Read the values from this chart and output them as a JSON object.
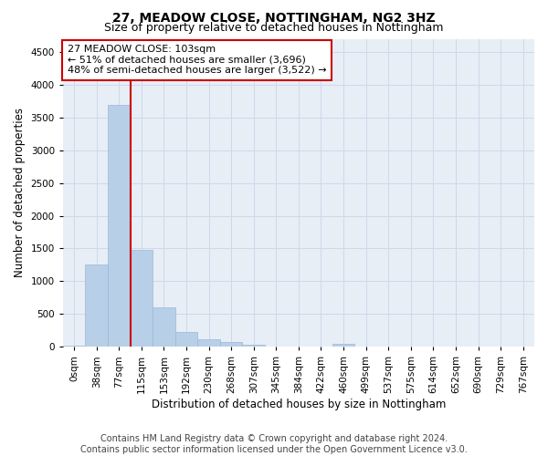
{
  "title": "27, MEADOW CLOSE, NOTTINGHAM, NG2 3HZ",
  "subtitle": "Size of property relative to detached houses in Nottingham",
  "xlabel": "Distribution of detached houses by size in Nottingham",
  "ylabel": "Number of detached properties",
  "footer_line1": "Contains HM Land Registry data © Crown copyright and database right 2024.",
  "footer_line2": "Contains public sector information licensed under the Open Government Licence v3.0.",
  "bin_labels": [
    "0sqm",
    "38sqm",
    "77sqm",
    "115sqm",
    "153sqm",
    "192sqm",
    "230sqm",
    "268sqm",
    "307sqm",
    "345sqm",
    "384sqm",
    "422sqm",
    "460sqm",
    "499sqm",
    "537sqm",
    "575sqm",
    "614sqm",
    "652sqm",
    "690sqm",
    "729sqm",
    "767sqm"
  ],
  "bar_values": [
    20,
    1250,
    3696,
    1480,
    600,
    230,
    115,
    80,
    30,
    5,
    0,
    0,
    40,
    0,
    0,
    0,
    0,
    0,
    0,
    0,
    0
  ],
  "ylim": [
    0,
    4700
  ],
  "yticks": [
    0,
    500,
    1000,
    1500,
    2000,
    2500,
    3000,
    3500,
    4000,
    4500
  ],
  "bar_color": "#b8cfe8",
  "bar_edge_color": "#9ab8d8",
  "grid_color": "#cdd8ea",
  "bg_color": "#e8eef6",
  "vline_x": 2.5,
  "vline_color": "#cc0000",
  "annotation_line1": "27 MEADOW CLOSE: 103sqm",
  "annotation_line2": "← 51% of detached houses are smaller (3,696)",
  "annotation_line3": "48% of semi-detached houses are larger (3,522) →",
  "annotation_box_color": "#cc0000",
  "title_fontsize": 10,
  "subtitle_fontsize": 9,
  "axis_label_fontsize": 8.5,
  "tick_fontsize": 7.5,
  "annotation_fontsize": 8,
  "footer_fontsize": 7
}
